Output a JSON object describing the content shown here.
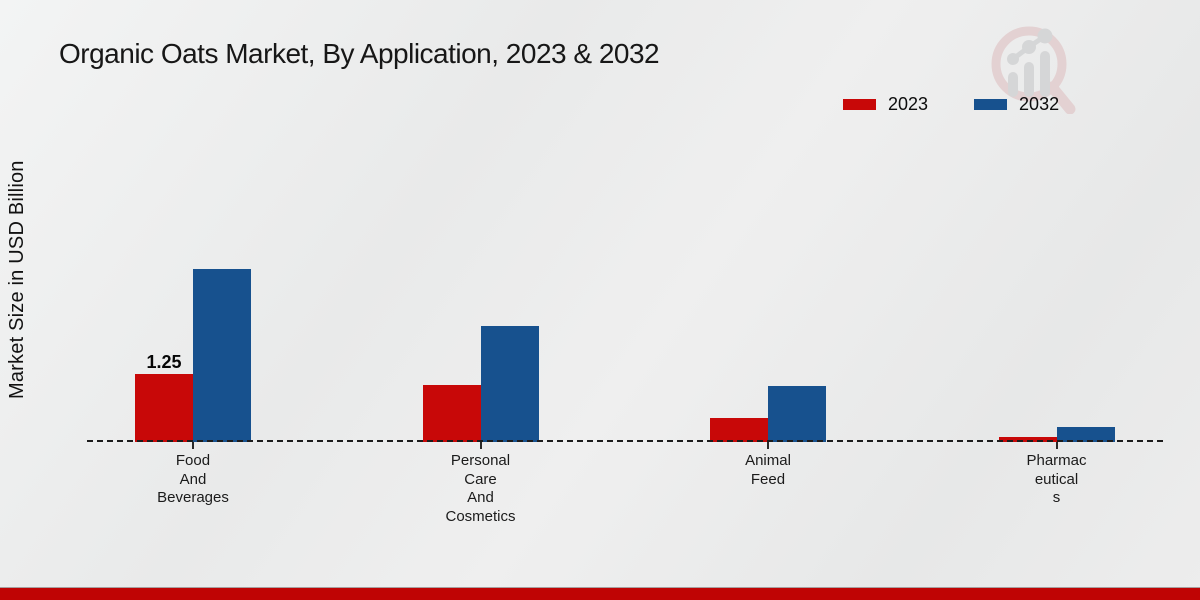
{
  "chart_data": {
    "type": "bar",
    "title": "Organic Oats Market, By Application, 2023 & 2032",
    "ylabel": "Market Size in USD Billion",
    "xlabel": "",
    "categories": [
      "Food And Beverages",
      "Personal Care And Cosmetics",
      "Animal Feed",
      "Pharmaceuticals"
    ],
    "category_label_lines": [
      [
        "Food",
        "And",
        "Beverages"
      ],
      [
        "Personal",
        "Care",
        "And",
        "Cosmetics"
      ],
      [
        "Animal",
        "Feed"
      ],
      [
        "Pharmac",
        "eutical",
        "s"
      ]
    ],
    "series": [
      {
        "name": "2023",
        "color": "#c80808",
        "values": [
          1.25,
          1.05,
          0.45,
          0.1
        ]
      },
      {
        "name": "2032",
        "color": "#17518e",
        "values": [
          3.18,
          2.13,
          1.03,
          0.28
        ]
      }
    ],
    "value_labels": [
      {
        "text": "1.25",
        "series_index": 0,
        "category_index": 0
      }
    ],
    "ylim": [
      0,
      3.5
    ],
    "grid": false,
    "legend_position": "top-right",
    "baseline_style": "dashed"
  },
  "branding": {
    "footer_color": "#bf0404",
    "logo_icon": "growth-magnifier-watermark-icon"
  }
}
